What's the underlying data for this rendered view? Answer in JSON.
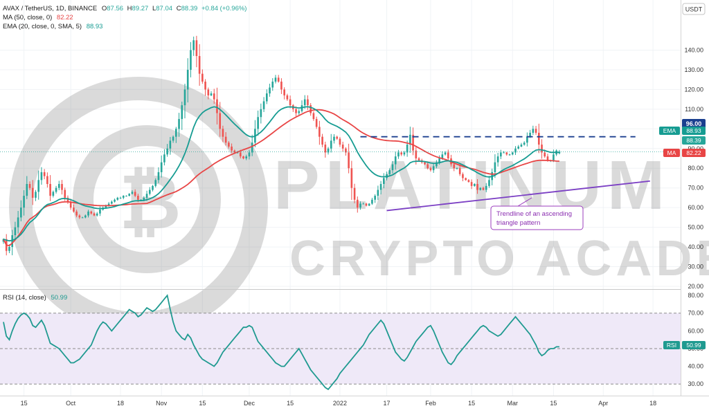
{
  "header": {
    "symbol_line": {
      "pair": "AVAX / TetherUS, 1D, BINANCE",
      "o_label": "O",
      "o_value": "87.56",
      "h_label": "H",
      "h_value": "89.27",
      "l_label": "L",
      "l_value": "87.04",
      "c_label": "C",
      "c_value": "88.39",
      "change": "+0.84 (+0.96%)"
    },
    "ma_line": {
      "label": "MA (50, close, 0)",
      "value": "82.22"
    },
    "ema_line": {
      "label": "EMA (20, close, 0, SMA, 5)",
      "value": "88.93"
    },
    "rsi_line": {
      "label": "RSI (14, close)",
      "value": "50.99"
    }
  },
  "currency_badge": "USDT",
  "watermark": {
    "line1": "PLATINUM",
    "line2": "CRYPTO ACADEMY"
  },
  "annotation": {
    "line1": "Trendline of an ascending",
    "line2": "triangle pattern"
  },
  "colors": {
    "candle_up": "#26a69a",
    "candle_down": "#ef5350",
    "ma": "#e84545",
    "ema": "#169c92",
    "trendline": "#7b3fc4",
    "resistance": "#1b3f8f",
    "rsi_line": "#1f9a90",
    "rsi_band": "#efe9f8",
    "annotation_border": "#9b3dbe",
    "annotation_text": "#8a2db0"
  },
  "price_labels": {
    "resistance": {
      "tag": "96.00",
      "value": 96
    },
    "ema": {
      "tag": "EMA",
      "value_text": "88.93",
      "value": 88.93
    },
    "last": {
      "value_text": "88.39",
      "value": 88.39
    },
    "ma": {
      "tag": "MA",
      "value_text": "82.22",
      "value": 82.22
    }
  },
  "rsi_label": {
    "tag": "RSI",
    "value_text": "50.99",
    "value": 50.99
  },
  "chart_data": {
    "type": "candlestick",
    "price_axis": {
      "min": 20,
      "max": 150,
      "ticks": [
        "20.00",
        "30.00",
        "40.00",
        "50.00",
        "60.00",
        "70.00",
        "80.00",
        "90.00",
        "100.00",
        "110.00",
        "120.00",
        "130.00",
        "140.00"
      ]
    },
    "rsi_axis": {
      "min": 25,
      "max": 82,
      "ticks": [
        "30.00",
        "40.00",
        "50.00",
        "60.00",
        "70.00",
        "80.00"
      ],
      "band": [
        30,
        70
      ],
      "mid": 50
    },
    "x_axis": {
      "date_range": [
        "2021-09-08",
        "2022-04-22"
      ],
      "labels": [
        {
          "text": "15",
          "date": "2021-09-15"
        },
        {
          "text": "Oct",
          "date": "2021-10-01"
        },
        {
          "text": "18",
          "date": "2021-10-18"
        },
        {
          "text": "Nov",
          "date": "2021-11-01"
        },
        {
          "text": "15",
          "date": "2021-11-15"
        },
        {
          "text": "Dec",
          "date": "2021-12-01"
        },
        {
          "text": "15",
          "date": "2021-12-15"
        },
        {
          "text": "2022",
          "date": "2022-01-01"
        },
        {
          "text": "17",
          "date": "2022-01-17"
        },
        {
          "text": "Feb",
          "date": "2022-02-01"
        },
        {
          "text": "15",
          "date": "2022-02-15"
        },
        {
          "text": "Mar",
          "date": "2022-03-01"
        },
        {
          "text": "15",
          "date": "2022-03-15"
        },
        {
          "text": "Apr",
          "date": "2022-04-01"
        },
        {
          "text": "18",
          "date": "2022-04-18"
        }
      ]
    },
    "close_path": {
      "first_date": "2021-09-08",
      "closes": [
        44,
        38,
        40,
        46,
        50,
        55,
        60,
        66,
        72,
        70,
        65,
        68,
        74,
        78,
        76,
        72,
        66,
        68,
        70,
        72,
        69,
        65,
        63,
        60,
        58,
        56,
        55,
        55,
        56,
        58,
        57,
        56,
        57,
        59,
        60,
        61,
        62,
        63,
        64,
        65,
        65,
        66,
        66,
        67,
        68,
        66,
        64,
        64,
        65,
        67,
        69,
        71,
        74,
        78,
        83,
        87,
        90,
        94,
        96,
        100,
        105,
        112,
        120,
        130,
        140,
        145,
        137,
        128,
        124,
        120,
        117,
        118,
        115,
        108,
        100,
        96,
        93,
        91,
        89,
        88,
        88,
        86,
        85,
        86,
        88,
        93,
        100,
        106,
        110,
        114,
        118,
        121,
        124,
        126,
        124,
        120,
        117,
        115,
        112,
        110,
        108,
        109,
        112,
        115,
        112,
        108,
        105,
        101,
        96,
        92,
        88,
        90,
        94,
        96,
        95,
        92,
        90,
        88,
        80,
        70,
        64,
        60,
        62,
        62,
        61,
        62,
        64,
        66,
        69,
        72,
        75,
        77,
        79,
        82,
        86,
        88,
        87,
        88,
        92,
        97,
        89,
        85,
        84,
        83,
        82,
        80,
        79,
        81,
        83,
        85,
        87,
        88,
        85,
        82,
        80,
        80,
        77,
        75,
        74,
        73,
        71,
        72,
        69,
        70,
        69,
        71,
        74,
        78,
        83,
        86,
        88,
        88,
        87,
        87,
        88,
        90,
        91,
        92,
        93,
        96,
        98,
        100,
        98,
        92,
        88,
        86,
        84,
        84,
        87,
        89,
        88
      ]
    },
    "last_candle": {
      "open": 87.56,
      "high": 89.27,
      "low": 87.04,
      "close": 88.39
    },
    "series": [
      {
        "name": "MA (50, close, 0)",
        "kind": "sma",
        "period": 50,
        "last_value": 82.22
      },
      {
        "name": "EMA (20, close, 0, SMA, 5)",
        "kind": "ema",
        "period": 20,
        "last_value": 88.93
      },
      {
        "name": "RSI (14, close)",
        "kind": "rsi",
        "period": 14,
        "last_value": 50.99
      }
    ],
    "rsi_path": {
      "first_date": "2021-09-08",
      "values": [
        65,
        57,
        55,
        60,
        64,
        67,
        69,
        70,
        69,
        67,
        63,
        62,
        64,
        66,
        63,
        58,
        53,
        52,
        51,
        50,
        48,
        46,
        44,
        42,
        42,
        43,
        44,
        46,
        48,
        50,
        52,
        56,
        60,
        63,
        65,
        64,
        62,
        60,
        62,
        64,
        66,
        68,
        70,
        72,
        71,
        70,
        68,
        69,
        71,
        73,
        72,
        71,
        72,
        74,
        76,
        78,
        80,
        72,
        65,
        60,
        58,
        56,
        55,
        58,
        56,
        52,
        49,
        46,
        44,
        43,
        42,
        41,
        40,
        42,
        45,
        48,
        50,
        52,
        54,
        56,
        58,
        60,
        62,
        62,
        63,
        62,
        58,
        54,
        52,
        50,
        48,
        46,
        44,
        42,
        41,
        40,
        40,
        42,
        44,
        46,
        48,
        50,
        47,
        44,
        41,
        38,
        36,
        34,
        32,
        30,
        28,
        27,
        29,
        31,
        33,
        36,
        38,
        40,
        42,
        44,
        46,
        48,
        50,
        52,
        55,
        58,
        60,
        62,
        64,
        66,
        64,
        60,
        56,
        52,
        48,
        46,
        44,
        43,
        45,
        48,
        51,
        54,
        56,
        58,
        60,
        62,
        63,
        60,
        56,
        52,
        48,
        45,
        42,
        41,
        43,
        46,
        48,
        50,
        52,
        54,
        56,
        58,
        60,
        62,
        63,
        62,
        60,
        59,
        58,
        57,
        58,
        60,
        62,
        64,
        66,
        68,
        66,
        64,
        62,
        60,
        58,
        55,
        52,
        48,
        46,
        47,
        49,
        50,
        50,
        51,
        51
      ]
    },
    "resistance_line": {
      "value": 96,
      "from_date": "2022-01-08",
      "to_date": "2022-04-12",
      "style": "dashed"
    },
    "trendline": {
      "from": {
        "date": "2022-01-17",
        "value": 58.5
      },
      "to": {
        "date": "2022-04-17",
        "value": 73.5
      }
    }
  }
}
